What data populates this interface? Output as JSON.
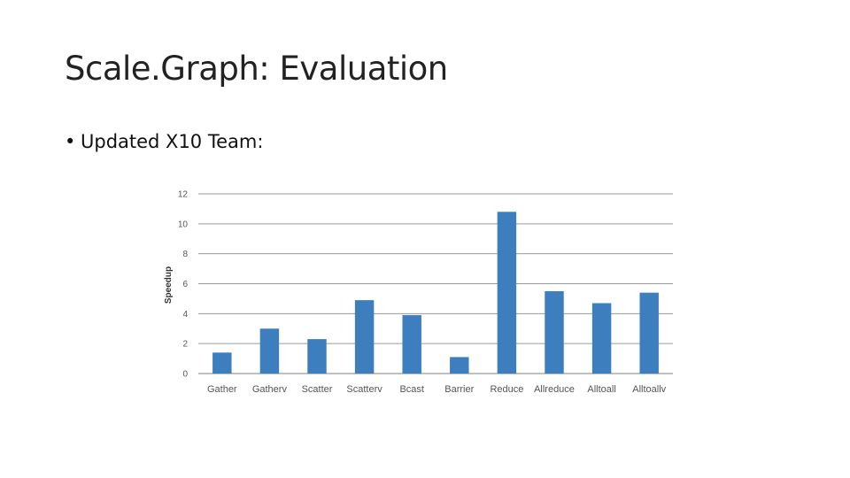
{
  "slide": {
    "title": "Scale.Graph: Evaluation",
    "bullets": [
      {
        "marker": "•",
        "text": "Updated X10 Team:"
      }
    ]
  },
  "chart_data": {
    "type": "bar",
    "title": "",
    "xlabel": "",
    "ylabel": "Speedup",
    "ylim": [
      0,
      12
    ],
    "yticks": [
      0,
      2,
      4,
      6,
      8,
      10,
      12
    ],
    "grid": true,
    "legend": "none",
    "bar_color": "#3d7ebf",
    "gridline_color": "#9a9a9a",
    "categories": [
      "Gather",
      "Gatherv",
      "Scatter",
      "Scatterv",
      "Bcast",
      "Barrier",
      "Reduce",
      "Allreduce",
      "Alltoall",
      "Alltoallv"
    ],
    "values": [
      1.4,
      3.0,
      2.3,
      4.9,
      3.9,
      1.1,
      10.8,
      5.5,
      4.7,
      5.4
    ]
  }
}
